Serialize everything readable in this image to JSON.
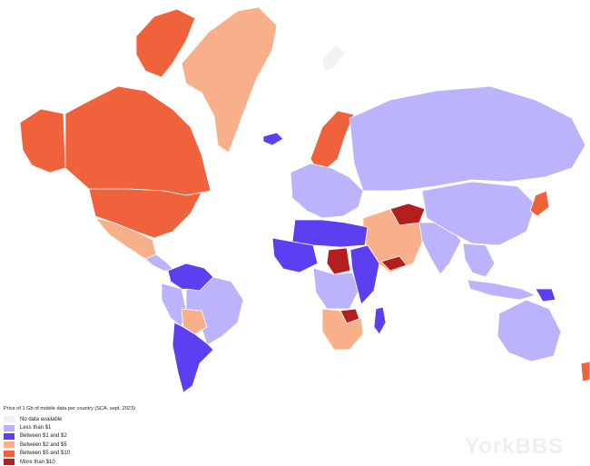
{
  "legend": {
    "title": "Price of 1 Gb of mobile data per country (SCA, sept. 2023)",
    "items": [
      {
        "label": "No data available",
        "color": "#f2f2f2"
      },
      {
        "label": "Less than $1",
        "color": "#bbb3fc"
      },
      {
        "label": "Between $1 and $2",
        "color": "#5b3ff0"
      },
      {
        "label": "Between $2 and $5",
        "color": "#f8b08a"
      },
      {
        "label": "Between $5 and $10",
        "color": "#f0623c"
      },
      {
        "label": "More than $10",
        "color": "#b41e1e"
      }
    ]
  },
  "watermark": "YorkBBS",
  "regions": [
    {
      "name": "greenland",
      "category": "Between $2 and $5"
    },
    {
      "name": "canada-arctic-islands",
      "category": "Between $5 and $10"
    },
    {
      "name": "canada",
      "category": "Between $5 and $10"
    },
    {
      "name": "alaska",
      "category": "Between $5 and $10"
    },
    {
      "name": "usa",
      "category": "Between $5 and $10"
    },
    {
      "name": "mexico",
      "category": "Between $2 and $5"
    },
    {
      "name": "central-america",
      "category": "Less than $1"
    },
    {
      "name": "colombia-venezuela",
      "category": "Between $1 and $2"
    },
    {
      "name": "peru",
      "category": "Less than $1"
    },
    {
      "name": "brazil",
      "category": "Less than $1"
    },
    {
      "name": "bolivia",
      "category": "Between $2 and $5"
    },
    {
      "name": "argentina-chile",
      "category": "Between $1 and $2"
    },
    {
      "name": "iceland",
      "category": "Between $1 and $2"
    },
    {
      "name": "scandinavia",
      "category": "Between $5 and $10"
    },
    {
      "name": "europe",
      "category": "Less than $1"
    },
    {
      "name": "russia",
      "category": "Less than $1"
    },
    {
      "name": "middle-east",
      "category": "Between $2 and $5"
    },
    {
      "name": "west-africa",
      "category": "Between $1 and $2"
    },
    {
      "name": "sahel",
      "category": "Between $1 and $2"
    },
    {
      "name": "central-africa",
      "category": "Less than $1"
    },
    {
      "name": "east-africa",
      "category": "Between $1 and $2"
    },
    {
      "name": "southern-africa",
      "category": "Between $2 and $5"
    },
    {
      "name": "madagascar",
      "category": "Between $1 and $2"
    },
    {
      "name": "india",
      "category": "Less than $1"
    },
    {
      "name": "china",
      "category": "Less than $1"
    },
    {
      "name": "southeast-asia",
      "category": "Less than $1"
    },
    {
      "name": "japan",
      "category": "Between $5 and $10"
    },
    {
      "name": "indonesia",
      "category": "Less than $1"
    },
    {
      "name": "papua",
      "category": "Between $1 and $2"
    },
    {
      "name": "australia",
      "category": "Less than $1"
    },
    {
      "name": "new-zealand",
      "category": "Between $5 and $10"
    },
    {
      "name": "turkmenistan",
      "category": "More than $10"
    },
    {
      "name": "yemen",
      "category": "More than $10"
    },
    {
      "name": "sudan",
      "category": "More than $10"
    },
    {
      "name": "zambia",
      "category": "More than $10"
    },
    {
      "name": "svalbard",
      "category": "No data available"
    }
  ]
}
